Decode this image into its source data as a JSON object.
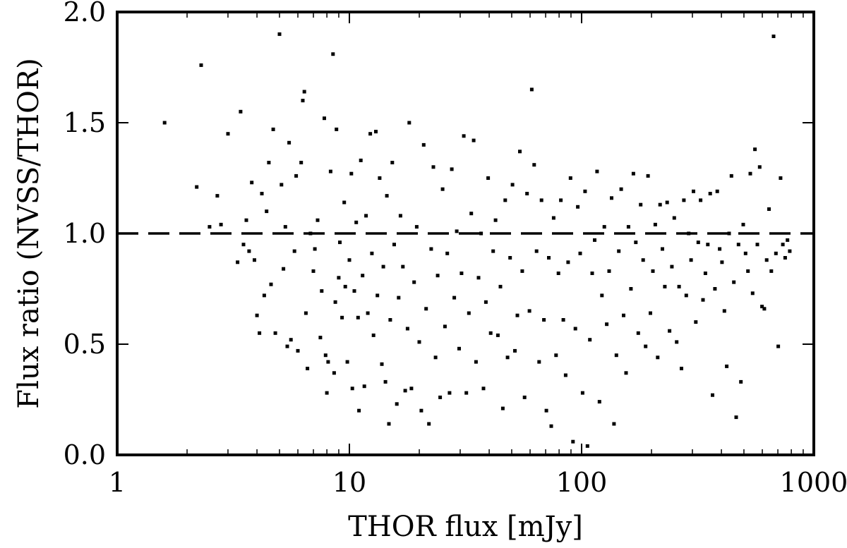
{
  "chart_data": {
    "type": "scatter",
    "xlabel": "THOR flux [mJy]",
    "ylabel": "Flux ratio (NVSS/THOR)",
    "xscale": "log",
    "xlim": [
      1,
      1000
    ],
    "ylim": [
      0.0,
      2.0
    ],
    "x_ticks": [
      {
        "value": 1,
        "label": "1"
      },
      {
        "value": 10,
        "label": "10"
      },
      {
        "value": 100,
        "label": "100"
      },
      {
        "value": 1000,
        "label": "1000"
      }
    ],
    "y_ticks": [
      {
        "value": 0.0,
        "label": "0.0"
      },
      {
        "value": 0.5,
        "label": "0.5"
      },
      {
        "value": 1.0,
        "label": "1.0"
      },
      {
        "value": 1.5,
        "label": "1.5"
      },
      {
        "value": 2.0,
        "label": "2.0"
      }
    ],
    "reference_line": {
      "y": 1.0,
      "style": "dashed"
    },
    "grid": false,
    "marker_color": "#000000",
    "points": [
      [
        1.6,
        1.5
      ],
      [
        2.2,
        1.21
      ],
      [
        2.3,
        1.76
      ],
      [
        2.5,
        1.03
      ],
      [
        2.7,
        1.17
      ],
      [
        2.8,
        1.04
      ],
      [
        3.0,
        1.45
      ],
      [
        3.3,
        0.87
      ],
      [
        3.4,
        1.55
      ],
      [
        3.5,
        0.95
      ],
      [
        3.6,
        1.06
      ],
      [
        3.7,
        0.92
      ],
      [
        3.8,
        1.23
      ],
      [
        3.9,
        0.88
      ],
      [
        4.0,
        0.63
      ],
      [
        4.1,
        0.55
      ],
      [
        4.2,
        1.18
      ],
      [
        4.3,
        0.72
      ],
      [
        4.4,
        1.1
      ],
      [
        4.5,
        1.32
      ],
      [
        4.6,
        0.77
      ],
      [
        4.7,
        1.47
      ],
      [
        4.8,
        0.55
      ],
      [
        5.0,
        1.9
      ],
      [
        5.1,
        1.22
      ],
      [
        5.2,
        0.84
      ],
      [
        5.3,
        1.03
      ],
      [
        5.4,
        0.49
      ],
      [
        5.5,
        1.41
      ],
      [
        5.6,
        0.52
      ],
      [
        5.8,
        0.92
      ],
      [
        5.9,
        1.26
      ],
      [
        6.0,
        0.47
      ],
      [
        6.2,
        1.32
      ],
      [
        6.3,
        1.6
      ],
      [
        6.4,
        1.64
      ],
      [
        6.5,
        0.64
      ],
      [
        6.6,
        0.39
      ],
      [
        6.8,
        1.0
      ],
      [
        7.0,
        0.83
      ],
      [
        7.1,
        0.93
      ],
      [
        7.3,
        1.06
      ],
      [
        7.5,
        0.53
      ],
      [
        7.6,
        0.74
      ],
      [
        7.8,
        1.52
      ],
      [
        7.9,
        0.45
      ],
      [
        8.0,
        0.28
      ],
      [
        8.1,
        0.42
      ],
      [
        8.3,
        1.28
      ],
      [
        8.5,
        1.81
      ],
      [
        8.6,
        0.37
      ],
      [
        8.7,
        0.69
      ],
      [
        8.8,
        1.47
      ],
      [
        9.0,
        0.8
      ],
      [
        9.1,
        0.96
      ],
      [
        9.3,
        0.62
      ],
      [
        9.5,
        1.14
      ],
      [
        9.6,
        0.76
      ],
      [
        9.8,
        0.42
      ],
      [
        10.0,
        0.88
      ],
      [
        10.2,
        1.27
      ],
      [
        10.3,
        0.3
      ],
      [
        10.5,
        0.74
      ],
      [
        10.7,
        1.05
      ],
      [
        10.9,
        0.62
      ],
      [
        11.0,
        0.2
      ],
      [
        11.2,
        1.33
      ],
      [
        11.4,
        0.81
      ],
      [
        11.6,
        0.31
      ],
      [
        11.8,
        1.08
      ],
      [
        12.0,
        0.64
      ],
      [
        12.3,
        1.45
      ],
      [
        12.5,
        0.91
      ],
      [
        12.7,
        0.54
      ],
      [
        13.0,
        1.46
      ],
      [
        13.2,
        0.72
      ],
      [
        13.5,
        1.25
      ],
      [
        13.8,
        0.41
      ],
      [
        14.0,
        0.85
      ],
      [
        14.3,
        0.33
      ],
      [
        14.5,
        1.17
      ],
      [
        14.8,
        0.14
      ],
      [
        15.0,
        0.61
      ],
      [
        15.3,
        1.32
      ],
      [
        15.6,
        0.95
      ],
      [
        16.0,
        0.23
      ],
      [
        16.3,
        0.71
      ],
      [
        16.6,
        1.08
      ],
      [
        17.0,
        0.85
      ],
      [
        17.4,
        0.29
      ],
      [
        17.8,
        0.57
      ],
      [
        18.1,
        1.5
      ],
      [
        18.5,
        0.3
      ],
      [
        19.0,
        0.78
      ],
      [
        19.5,
        1.03
      ],
      [
        20.0,
        0.51
      ],
      [
        20.4,
        0.2
      ],
      [
        20.9,
        1.4
      ],
      [
        21.4,
        0.66
      ],
      [
        22.0,
        0.14
      ],
      [
        22.5,
        0.93
      ],
      [
        23.0,
        1.3
      ],
      [
        23.5,
        0.44
      ],
      [
        24.0,
        0.81
      ],
      [
        24.6,
        0.26
      ],
      [
        25.2,
        1.2
      ],
      [
        25.8,
        0.58
      ],
      [
        26.4,
        0.91
      ],
      [
        27.0,
        0.28
      ],
      [
        27.6,
        1.29
      ],
      [
        28.3,
        0.71
      ],
      [
        29.0,
        1.01
      ],
      [
        29.7,
        0.48
      ],
      [
        30.4,
        0.82
      ],
      [
        31.1,
        1.44
      ],
      [
        31.9,
        0.28
      ],
      [
        32.7,
        0.64
      ],
      [
        33.5,
        1.09
      ],
      [
        34.3,
        1.42
      ],
      [
        35.1,
        0.42
      ],
      [
        36.0,
        0.8
      ],
      [
        36.9,
        1.0
      ],
      [
        37.8,
        0.3
      ],
      [
        38.7,
        0.69
      ],
      [
        39.6,
        1.25
      ],
      [
        40.6,
        0.55
      ],
      [
        41.6,
        0.92
      ],
      [
        42.6,
        1.06
      ],
      [
        43.6,
        0.54
      ],
      [
        44.7,
        0.76
      ],
      [
        45.8,
        0.21
      ],
      [
        46.9,
        1.15
      ],
      [
        48.0,
        0.44
      ],
      [
        49.2,
        0.89
      ],
      [
        50.4,
        1.22
      ],
      [
        51.6,
        0.47
      ],
      [
        52.9,
        0.63
      ],
      [
        54.2,
        1.37
      ],
      [
        55.5,
        0.83
      ],
      [
        56.8,
        0.26
      ],
      [
        58.2,
        1.18
      ],
      [
        59.6,
        0.65
      ],
      [
        61.0,
        1.65
      ],
      [
        62.5,
        1.31
      ],
      [
        64.0,
        0.92
      ],
      [
        65.6,
        0.42
      ],
      [
        67.2,
        1.15
      ],
      [
        68.8,
        0.61
      ],
      [
        70.5,
        0.2
      ],
      [
        72.2,
        0.89
      ],
      [
        74.0,
        0.13
      ],
      [
        75.8,
        1.07
      ],
      [
        77.6,
        0.45
      ],
      [
        79.5,
        0.82
      ],
      [
        81.4,
        1.15
      ],
      [
        83.4,
        0.61
      ],
      [
        85.4,
        0.36
      ],
      [
        87.5,
        0.87
      ],
      [
        89.6,
        1.25
      ],
      [
        91.8,
        0.06
      ],
      [
        94.0,
        0.57
      ],
      [
        96.3,
        1.12
      ],
      [
        98.6,
        0.91
      ],
      [
        101.0,
        0.28
      ],
      [
        103.5,
        1.19
      ],
      [
        106.0,
        0.04
      ],
      [
        108.5,
        0.52
      ],
      [
        111.1,
        0.82
      ],
      [
        113.8,
        0.97
      ],
      [
        116.6,
        1.28
      ],
      [
        119.4,
        0.24
      ],
      [
        122.3,
        0.72
      ],
      [
        125.3,
        1.03
      ],
      [
        128.3,
        0.59
      ],
      [
        131.4,
        0.83
      ],
      [
        134.6,
        1.16
      ],
      [
        137.9,
        0.14
      ],
      [
        141.2,
        0.45
      ],
      [
        144.6,
        0.92
      ],
      [
        148.1,
        1.2
      ],
      [
        151.7,
        0.63
      ],
      [
        155.4,
        0.37
      ],
      [
        159.2,
        1.03
      ],
      [
        163.1,
        0.75
      ],
      [
        167.1,
        1.27
      ],
      [
        171.2,
        0.96
      ],
      [
        175.4,
        0.55
      ],
      [
        179.7,
        1.13
      ],
      [
        184.1,
        0.88
      ],
      [
        188.6,
        0.49
      ],
      [
        193.2,
        1.26
      ],
      [
        197.9,
        0.64
      ],
      [
        202.7,
        0.83
      ],
      [
        207.6,
        1.04
      ],
      [
        212.6,
        0.44
      ],
      [
        217.7,
        1.13
      ],
      [
        222.9,
        0.93
      ],
      [
        228.2,
        0.76
      ],
      [
        233.6,
        1.14
      ],
      [
        239.1,
        0.56
      ],
      [
        244.8,
        0.85
      ],
      [
        250.7,
        1.07
      ],
      [
        256.7,
        0.51
      ],
      [
        262.9,
        0.76
      ],
      [
        269.2,
        0.39
      ],
      [
        275.7,
        1.15
      ],
      [
        282.3,
        0.72
      ],
      [
        289.1,
        1.0
      ],
      [
        296.0,
        0.88
      ],
      [
        303.2,
        1.19
      ],
      [
        310.4,
        0.6
      ],
      [
        317.9,
        0.96
      ],
      [
        325.5,
        1.15
      ],
      [
        333.3,
        0.7
      ],
      [
        341.3,
        0.82
      ],
      [
        349.5,
        0.95
      ],
      [
        357.9,
        1.18
      ],
      [
        366.4,
        0.27
      ],
      [
        375.1,
        0.75
      ],
      [
        384.0,
        1.19
      ],
      [
        393.1,
        0.93
      ],
      [
        402.4,
        0.87
      ],
      [
        412.0,
        0.65
      ],
      [
        421.7,
        0.4
      ],
      [
        431.7,
        1.0
      ],
      [
        441.9,
        1.26
      ],
      [
        452.4,
        0.78
      ],
      [
        463.1,
        0.17
      ],
      [
        474.0,
        0.95
      ],
      [
        485.2,
        0.33
      ],
      [
        496.6,
        1.04
      ],
      [
        508.4,
        0.91
      ],
      [
        520.4,
        0.83
      ],
      [
        532.6,
        1.27
      ],
      [
        545.2,
        0.73
      ],
      [
        558.0,
        1.38
      ],
      [
        571.1,
        0.95
      ],
      [
        584.5,
        1.3
      ],
      [
        598.2,
        0.67
      ],
      [
        612.2,
        0.66
      ],
      [
        626.4,
        0.88
      ],
      [
        641.0,
        1.11
      ],
      [
        656.0,
        0.83
      ],
      [
        671.2,
        1.89
      ],
      [
        686.8,
        0.91
      ],
      [
        702.7,
        0.49
      ],
      [
        719.0,
        1.25
      ],
      [
        735.5,
        0.95
      ],
      [
        752.5,
        0.89
      ],
      [
        770.0,
        0.97
      ],
      [
        787.6,
        0.92
      ]
    ]
  }
}
